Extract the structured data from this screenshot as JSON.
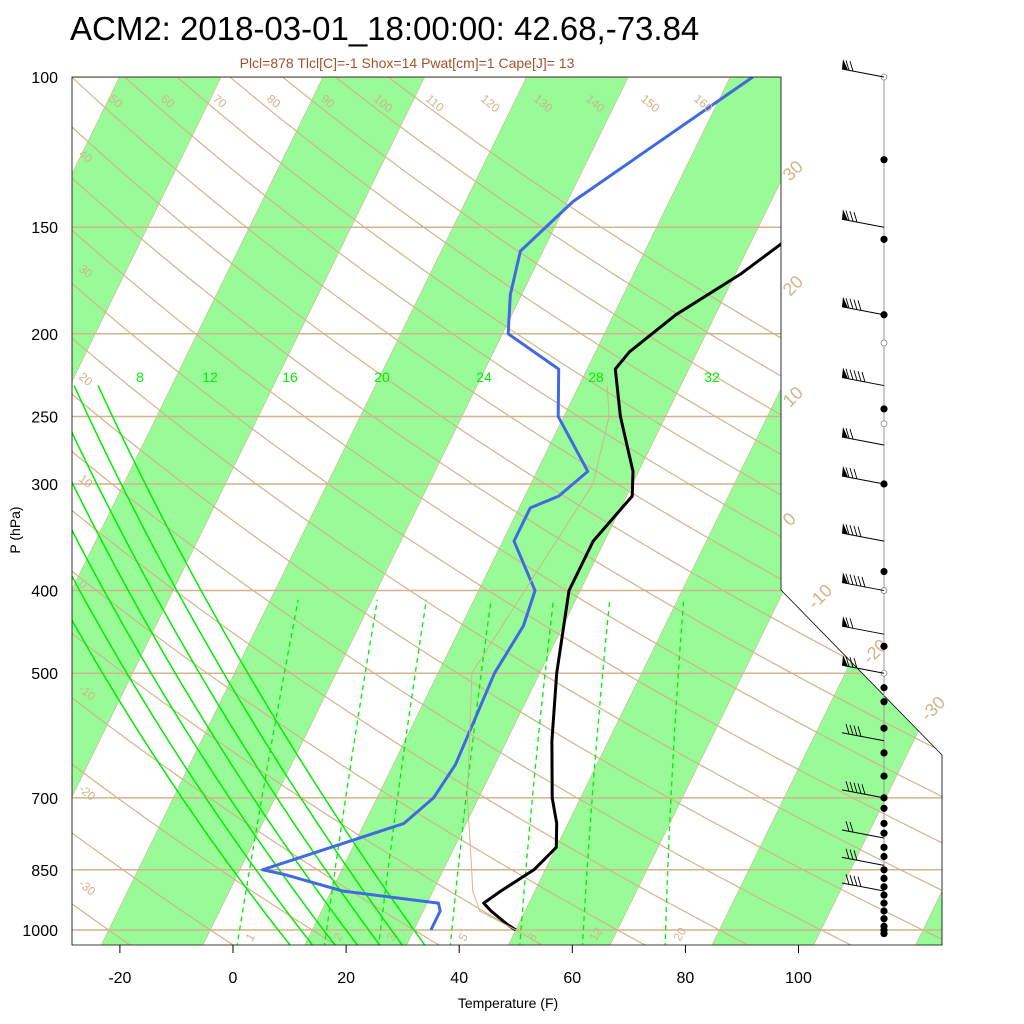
{
  "title": "ACM2: 2018-03-01_18:00:00: 42.68,-73.84",
  "subtitle": "Plcl=878 Tlcl[C]=-1 Shox=14 Pwat[cm]=1 Cape[J]= 13",
  "colors": {
    "isotherm_band": "#98fb98",
    "isopleth": "#d2b48c",
    "mixing_ratio": "#00ee00",
    "temperature": "#000000",
    "dewpoint": "#4169e1",
    "parcel": "#d2b48c",
    "wind": "#000000"
  },
  "chart_data": {
    "type": "line",
    "xlabel": "Temperature (F)",
    "ylabel": "P (hPa)",
    "x_ticks": [
      -20,
      0,
      20,
      40,
      60,
      80,
      100
    ],
    "y_ticks": [
      100,
      150,
      200,
      250,
      300,
      400,
      500,
      700,
      850,
      1000
    ],
    "temperature_labels": [
      30,
      20,
      10,
      0,
      -10,
      -20,
      -30
    ],
    "theta_labels": [
      50,
      60,
      70,
      80,
      90,
      100,
      110,
      120,
      130,
      140,
      150,
      160
    ],
    "theta_left_labels": [
      40,
      30,
      20,
      10,
      0,
      -10,
      -20,
      -30
    ],
    "mixing_ratio_labels": [
      8,
      12,
      16,
      20,
      24,
      28,
      32
    ],
    "mixing_ratio_low_labels": [
      1,
      2,
      3,
      5,
      8,
      12,
      20
    ],
    "series": [
      {
        "key": "temperature",
        "points": [
          [
            1000,
            50
          ],
          [
            985,
            48
          ],
          [
            950,
            44
          ],
          [
            930,
            42
          ],
          [
            900,
            44
          ],
          [
            850,
            48
          ],
          [
            800,
            50
          ],
          [
            750,
            48
          ],
          [
            700,
            45
          ],
          [
            600,
            40
          ],
          [
            500,
            35
          ],
          [
            400,
            30
          ],
          [
            350,
            30
          ],
          [
            310,
            33
          ],
          [
            290,
            31
          ],
          [
            250,
            24
          ],
          [
            220,
            19
          ],
          [
            210,
            20
          ],
          [
            190,
            25
          ],
          [
            170,
            33
          ],
          [
            150,
            40
          ],
          [
            120,
            50
          ],
          [
            100,
            57
          ]
        ]
      },
      {
        "key": "dewpoint",
        "points": [
          [
            1000,
            35
          ],
          [
            950,
            35
          ],
          [
            930,
            34
          ],
          [
            900,
            16
          ],
          [
            860,
            4
          ],
          [
            850,
            0
          ],
          [
            750,
            21
          ],
          [
            700,
            24
          ],
          [
            640,
            25
          ],
          [
            500,
            24
          ],
          [
            440,
            25
          ],
          [
            400,
            24
          ],
          [
            350,
            16
          ],
          [
            320,
            16
          ],
          [
            310,
            20
          ],
          [
            290,
            23
          ],
          [
            250,
            13
          ],
          [
            220,
            9
          ],
          [
            200,
            -3
          ],
          [
            180,
            -6
          ],
          [
            160,
            -8
          ],
          [
            140,
            -3
          ],
          [
            100,
            18
          ]
        ]
      },
      {
        "key": "parcel",
        "points": [
          [
            1000,
            50
          ],
          [
            950,
            42
          ],
          [
            900,
            39
          ],
          [
            850,
            37
          ],
          [
            700,
            30
          ],
          [
            500,
            20
          ],
          [
            300,
            25
          ],
          [
            250,
            22
          ],
          [
            230,
            19
          ]
        ]
      }
    ],
    "wind_levels_hPa": [
      100,
      150,
      190,
      230,
      270,
      300,
      350,
      400,
      450,
      500,
      600,
      700,
      780,
      840,
      900
    ],
    "wind_dots_hPa": [
      125,
      155,
      190,
      245,
      300,
      380,
      465,
      520,
      540,
      580,
      620,
      660,
      700,
      720,
      750,
      770,
      800,
      820,
      850,
      870,
      890,
      910,
      930,
      950,
      970,
      990,
      1000,
      1010
    ],
    "wind_open_circles_hPa": [
      100,
      155,
      205,
      255,
      400,
      500
    ]
  }
}
